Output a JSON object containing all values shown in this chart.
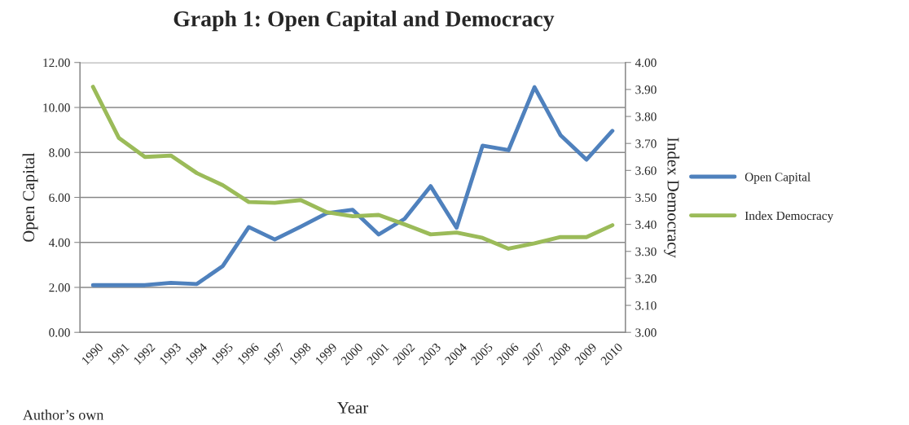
{
  "chart_data": {
    "type": "line",
    "title": "Graph 1: Open Capital and Democracy",
    "xlabel": "Year",
    "ylabel": "Open Capital",
    "y2label": "Index Democracy",
    "categories": [
      "1990",
      "1991",
      "1992",
      "1993",
      "1994",
      "1995",
      "1996",
      "1997",
      "1998",
      "1999",
      "2000",
      "2001",
      "2002",
      "2003",
      "2004",
      "2005",
      "2006",
      "2007",
      "2008",
      "2009",
      "2010"
    ],
    "series": [
      {
        "name": "Open Capital",
        "color": "#4f81bd",
        "values": [
          2.1,
          2.1,
          2.1,
          2.2,
          2.15,
          2.95,
          4.68,
          4.13,
          4.7,
          5.3,
          5.45,
          4.35,
          5.05,
          6.5,
          4.65,
          8.3,
          8.1,
          10.9,
          8.77,
          7.68,
          8.96
        ]
      },
      {
        "name": "Index Democracy",
        "color": "#9bbb59",
        "axis": "y2",
        "values": [
          3.91,
          3.72,
          3.65,
          3.655,
          3.59,
          3.545,
          3.483,
          3.48,
          3.49,
          3.445,
          3.43,
          3.435,
          3.4,
          3.363,
          3.37,
          3.35,
          3.31,
          3.33,
          3.353,
          3.353,
          3.397
        ]
      }
    ],
    "ylim": [
      0,
      12
    ],
    "yticks": [
      {
        "value": 0,
        "label": "0.00"
      },
      {
        "value": 2,
        "label": "2.00"
      },
      {
        "value": 4,
        "label": "4.00"
      },
      {
        "value": 6,
        "label": "6.00"
      },
      {
        "value": 8,
        "label": "8.00"
      },
      {
        "value": 10,
        "label": "10.00"
      },
      {
        "value": 12,
        "label": "12.00"
      }
    ],
    "y2lim": [
      3,
      4
    ],
    "y2ticks": [
      {
        "value": 3,
        "label": "3.00"
      },
      {
        "value": 3.1,
        "label": "3.10"
      },
      {
        "value": 3.2,
        "label": "3.20"
      },
      {
        "value": 3.3,
        "label": "3.30"
      },
      {
        "value": 3.4,
        "label": "3.40"
      },
      {
        "value": 3.5,
        "label": "3.50"
      },
      {
        "value": 3.6,
        "label": "3.60"
      },
      {
        "value": 3.7,
        "label": "3.70"
      },
      {
        "value": 3.8,
        "label": "3.80"
      },
      {
        "value": 3.9,
        "label": "3.90"
      },
      {
        "value": 4,
        "label": "4.00"
      }
    ],
    "grid": "y",
    "legend": "right",
    "marker": "none",
    "line_style": "solid",
    "annotations": [
      "Author’s own"
    ]
  }
}
